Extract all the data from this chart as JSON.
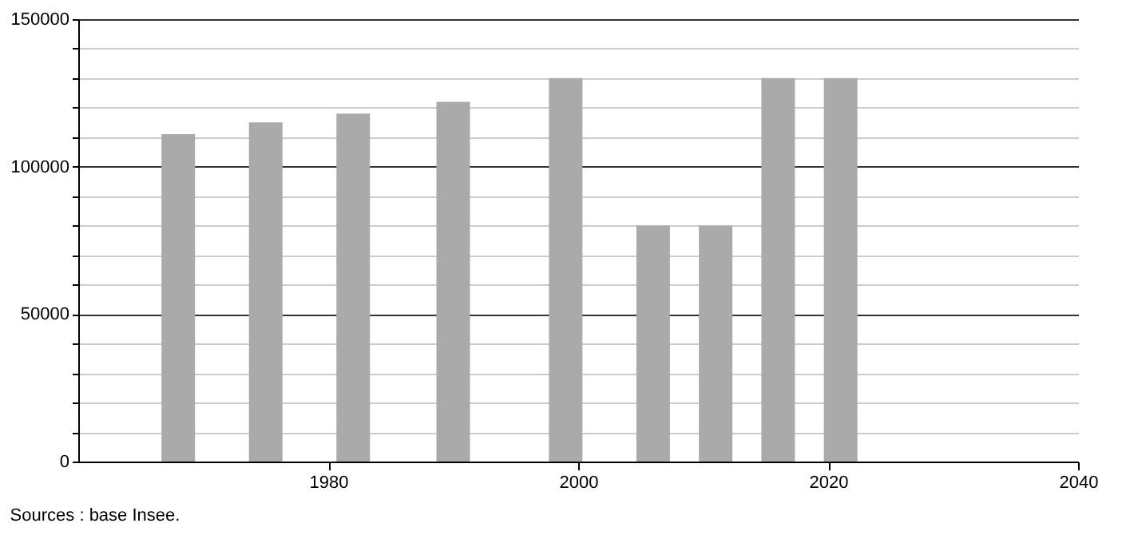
{
  "chart_data": {
    "type": "bar",
    "x": [
      1968,
      1975,
      1982,
      1990,
      1999,
      2006,
      2011,
      2016,
      2021
    ],
    "values": [
      111000,
      115000,
      118000,
      122000,
      130000,
      80000,
      80000,
      130000,
      130000
    ],
    "color": "#aaaaaa",
    "xlim": [
      1960,
      2040
    ],
    "xticks": [
      1980,
      2000,
      2020,
      2040
    ],
    "ylim": [
      0,
      150000
    ],
    "yticks": [
      0,
      {
        "value": 10000,
        "label": null
      },
      {
        "value": 20000,
        "label": null
      },
      {
        "value": 30000,
        "label": null
      },
      {
        "value": 40000,
        "label": null
      },
      50000,
      {
        "value": 60000,
        "label": null
      },
      {
        "value": 70000,
        "label": null
      },
      {
        "value": 80000,
        "label": null
      },
      {
        "value": 90000,
        "label": null
      },
      100000,
      {
        "value": 110000,
        "label": null
      },
      {
        "value": 120000,
        "label": null
      },
      {
        "value": 130000,
        "label": null
      },
      {
        "value": 140000,
        "label": null
      },
      150000
    ],
    "grid": "y",
    "annotations": [
      "Sources : base Insee."
    ]
  }
}
